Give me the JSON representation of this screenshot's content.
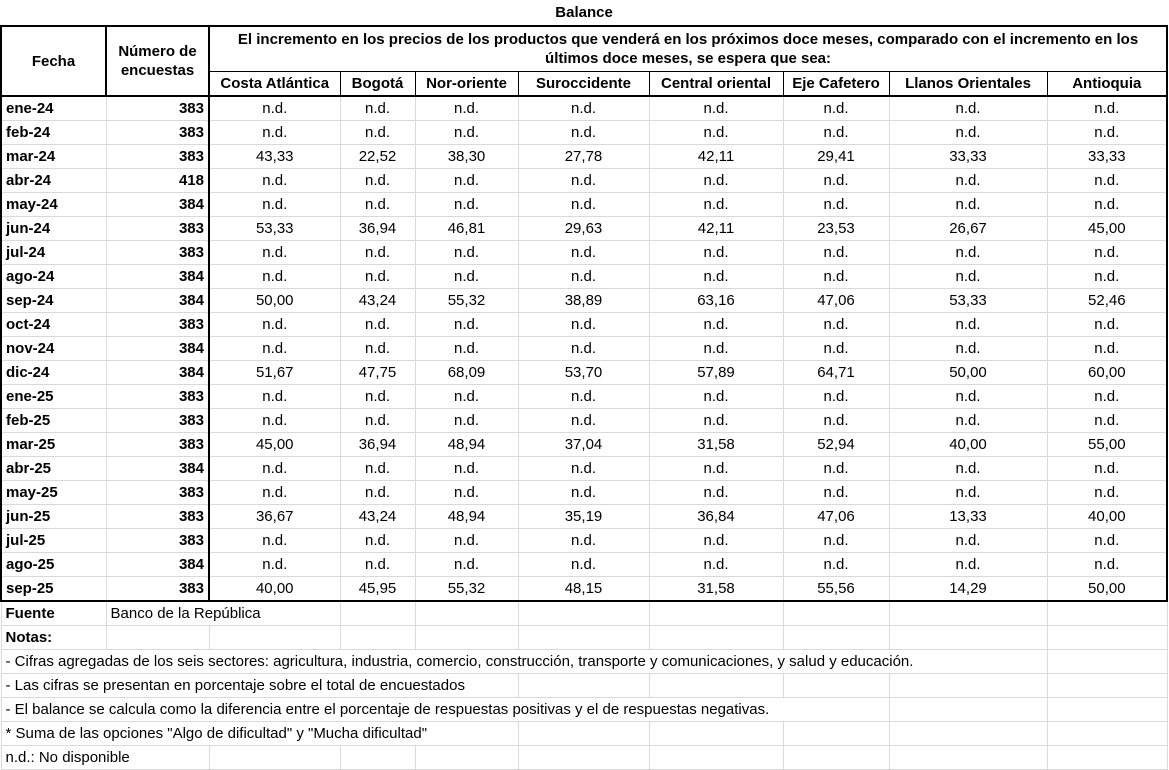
{
  "title": "Balance",
  "headers": {
    "fecha": "Fecha",
    "encuestas": "Número de encuestas",
    "question": "El incremento en los precios de los productos que venderá en los próximos doce meses, comparado con el incremento en los últimos doce meses, se espera que sea:",
    "regions": [
      "Costa Atlántica",
      "Bogotá",
      "Nor-oriente",
      "Suroccidente",
      "Central oriental",
      "Eje Cafetero",
      "Llanos Orientales",
      "Antioquia"
    ]
  },
  "rows": [
    {
      "fecha": "ene-24",
      "n": "383",
      "v": [
        "n.d.",
        "n.d.",
        "n.d.",
        "n.d.",
        "n.d.",
        "n.d.",
        "n.d.",
        "n.d."
      ]
    },
    {
      "fecha": "feb-24",
      "n": "383",
      "v": [
        "n.d.",
        "n.d.",
        "n.d.",
        "n.d.",
        "n.d.",
        "n.d.",
        "n.d.",
        "n.d."
      ]
    },
    {
      "fecha": "mar-24",
      "n": "383",
      "v": [
        "43,33",
        "22,52",
        "38,30",
        "27,78",
        "42,11",
        "29,41",
        "33,33",
        "33,33"
      ]
    },
    {
      "fecha": "abr-24",
      "n": "418",
      "v": [
        "n.d.",
        "n.d.",
        "n.d.",
        "n.d.",
        "n.d.",
        "n.d.",
        "n.d.",
        "n.d."
      ]
    },
    {
      "fecha": "may-24",
      "n": "384",
      "v": [
        "n.d.",
        "n.d.",
        "n.d.",
        "n.d.",
        "n.d.",
        "n.d.",
        "n.d.",
        "n.d."
      ]
    },
    {
      "fecha": "jun-24",
      "n": "383",
      "v": [
        "53,33",
        "36,94",
        "46,81",
        "29,63",
        "42,11",
        "23,53",
        "26,67",
        "45,00"
      ]
    },
    {
      "fecha": "jul-24",
      "n": "383",
      "v": [
        "n.d.",
        "n.d.",
        "n.d.",
        "n.d.",
        "n.d.",
        "n.d.",
        "n.d.",
        "n.d."
      ]
    },
    {
      "fecha": "ago-24",
      "n": "384",
      "v": [
        "n.d.",
        "n.d.",
        "n.d.",
        "n.d.",
        "n.d.",
        "n.d.",
        "n.d.",
        "n.d."
      ]
    },
    {
      "fecha": "sep-24",
      "n": "384",
      "v": [
        "50,00",
        "43,24",
        "55,32",
        "38,89",
        "63,16",
        "47,06",
        "53,33",
        "52,46"
      ]
    },
    {
      "fecha": "oct-24",
      "n": "383",
      "v": [
        "n.d.",
        "n.d.",
        "n.d.",
        "n.d.",
        "n.d.",
        "n.d.",
        "n.d.",
        "n.d."
      ]
    },
    {
      "fecha": "nov-24",
      "n": "384",
      "v": [
        "n.d.",
        "n.d.",
        "n.d.",
        "n.d.",
        "n.d.",
        "n.d.",
        "n.d.",
        "n.d."
      ]
    },
    {
      "fecha": "dic-24",
      "n": "384",
      "v": [
        "51,67",
        "47,75",
        "68,09",
        "53,70",
        "57,89",
        "64,71",
        "50,00",
        "60,00"
      ]
    },
    {
      "fecha": "ene-25",
      "n": "383",
      "v": [
        "n.d.",
        "n.d.",
        "n.d.",
        "n.d.",
        "n.d.",
        "n.d.",
        "n.d.",
        "n.d."
      ]
    },
    {
      "fecha": "feb-25",
      "n": "383",
      "v": [
        "n.d.",
        "n.d.",
        "n.d.",
        "n.d.",
        "n.d.",
        "n.d.",
        "n.d.",
        "n.d."
      ]
    },
    {
      "fecha": "mar-25",
      "n": "383",
      "v": [
        "45,00",
        "36,94",
        "48,94",
        "37,04",
        "31,58",
        "52,94",
        "40,00",
        "55,00"
      ]
    },
    {
      "fecha": "abr-25",
      "n": "384",
      "v": [
        "n.d.",
        "n.d.",
        "n.d.",
        "n.d.",
        "n.d.",
        "n.d.",
        "n.d.",
        "n.d."
      ]
    },
    {
      "fecha": "may-25",
      "n": "383",
      "v": [
        "n.d.",
        "n.d.",
        "n.d.",
        "n.d.",
        "n.d.",
        "n.d.",
        "n.d.",
        "n.d."
      ]
    },
    {
      "fecha": "jun-25",
      "n": "383",
      "v": [
        "36,67",
        "43,24",
        "48,94",
        "35,19",
        "36,84",
        "47,06",
        "13,33",
        "40,00"
      ]
    },
    {
      "fecha": "jul-25",
      "n": "383",
      "v": [
        "n.d.",
        "n.d.",
        "n.d.",
        "n.d.",
        "n.d.",
        "n.d.",
        "n.d.",
        "n.d."
      ]
    },
    {
      "fecha": "ago-25",
      "n": "384",
      "v": [
        "n.d.",
        "n.d.",
        "n.d.",
        "n.d.",
        "n.d.",
        "n.d.",
        "n.d.",
        "n.d."
      ]
    },
    {
      "fecha": "sep-25",
      "n": "383",
      "v": [
        "40,00",
        "45,95",
        "55,32",
        "48,15",
        "31,58",
        "55,56",
        "14,29",
        "50,00"
      ]
    }
  ],
  "footer": {
    "fuente_label": "Fuente",
    "fuente": "Banco de la República",
    "notas_label": "Notas:",
    "notes": [
      "- Cifras agregadas de los seis sectores: agricultura, industria, comercio, construcción, transporte y comunicaciones, y salud y educación.",
      "- Las cifras se presentan en porcentaje sobre el total de encuestados",
      "- El balance se calcula como la diferencia entre el porcentaje de respuestas positivas y el de respuestas negativas.",
      "* Suma de las opciones \"Algo de dificultad\" y \"Mucha dificultad\"",
      "n.d.: No disponible"
    ]
  }
}
